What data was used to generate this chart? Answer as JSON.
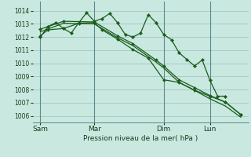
{
  "background_color": "#c8e8e0",
  "grid_color": "#a8ccc8",
  "line_color": "#1a5c1a",
  "vline_color": "#5a8a8a",
  "xlabel": "Pression niveau de la mer( hPa )",
  "ylim": [
    1005.5,
    1014.7
  ],
  "xlim": [
    0,
    28
  ],
  "yticks": [
    1006,
    1007,
    1008,
    1009,
    1010,
    1011,
    1012,
    1013,
    1014
  ],
  "xtick_labels": [
    "Sam",
    "Mar",
    "Dim",
    "Lun"
  ],
  "xtick_positions": [
    1,
    8,
    17,
    23
  ],
  "vline_positions": [
    1,
    8,
    17,
    23
  ],
  "series_wiggly_x": [
    1,
    2,
    3,
    4,
    5,
    6,
    7,
    8,
    9,
    10,
    11,
    12,
    13,
    14,
    15,
    16,
    17,
    18,
    19,
    20,
    21,
    22,
    23,
    24,
    25
  ],
  "series_wiggly_y": [
    1012.0,
    1012.8,
    1013.1,
    1012.65,
    1012.3,
    1013.1,
    1013.85,
    1013.2,
    1013.4,
    1013.8,
    1013.1,
    1012.2,
    1012.0,
    1012.3,
    1013.7,
    1013.1,
    1012.2,
    1011.8,
    1010.8,
    1010.3,
    1009.8,
    1010.25,
    1008.7,
    1007.5,
    1007.5
  ],
  "series_straight1_x": [
    1,
    4,
    8,
    11,
    13,
    16,
    17,
    19,
    21,
    23,
    25,
    27
  ],
  "series_straight1_y": [
    1012.6,
    1013.2,
    1013.15,
    1012.1,
    1011.5,
    1010.25,
    1009.8,
    1008.75,
    1008.15,
    1007.55,
    1007.05,
    1006.1
  ],
  "series_straight2_x": [
    1,
    4,
    8,
    11,
    13,
    16,
    17,
    19,
    21,
    23,
    25,
    27
  ],
  "series_straight2_y": [
    1012.4,
    1013.05,
    1013.0,
    1011.95,
    1011.35,
    1010.1,
    1009.65,
    1008.55,
    1007.95,
    1007.3,
    1006.75,
    1005.9
  ],
  "series_wiggly2_x": [
    1,
    2,
    4,
    6,
    8,
    9,
    11,
    13,
    15,
    17,
    19,
    21,
    23,
    25,
    27
  ],
  "series_wiggly2_y": [
    1012.1,
    1012.55,
    1012.65,
    1013.05,
    1013.1,
    1012.55,
    1011.85,
    1011.05,
    1010.4,
    1008.75,
    1008.55,
    1007.95,
    1007.5,
    1007.05,
    1006.1
  ]
}
